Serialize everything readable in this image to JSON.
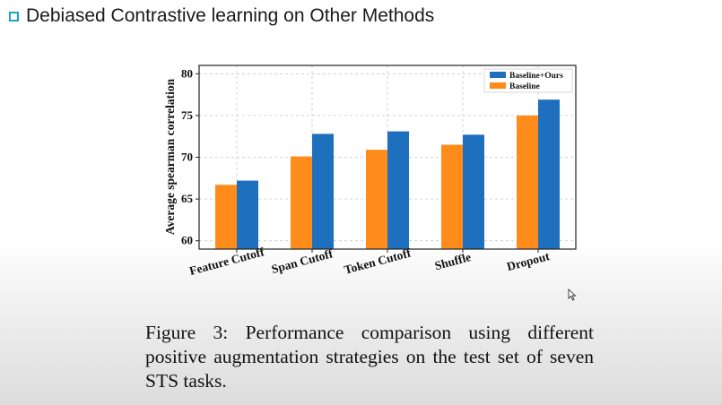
{
  "slide": {
    "title": "Debiased Contrastive learning on Other Methods"
  },
  "caption": "Figure 3: Performance comparison using different positive augmentation strategies on the test set of seven STS tasks.",
  "colors": {
    "baseline": "#ff8c1a",
    "ours": "#1f6fbf",
    "bullet": "#1aa3c8"
  },
  "chart_data": {
    "type": "bar",
    "title": "",
    "xlabel": "",
    "ylabel": "Average spearman correlation",
    "ylim": [
      59,
      81
    ],
    "yticks": [
      "60",
      "65",
      "70",
      "75",
      "80"
    ],
    "grid": true,
    "legend_position": "top-right",
    "categories": [
      "Feature Cutoff",
      "Span Cutoff",
      "Token Cutoff",
      "Shuffle",
      "Dropout"
    ],
    "series": [
      {
        "name": "Baseline",
        "values": [
          66.7,
          70.1,
          70.9,
          71.5,
          75.0
        ]
      },
      {
        "name": "Baseline+Ours",
        "values": [
          67.2,
          72.8,
          73.1,
          72.7,
          76.9
        ]
      }
    ]
  }
}
